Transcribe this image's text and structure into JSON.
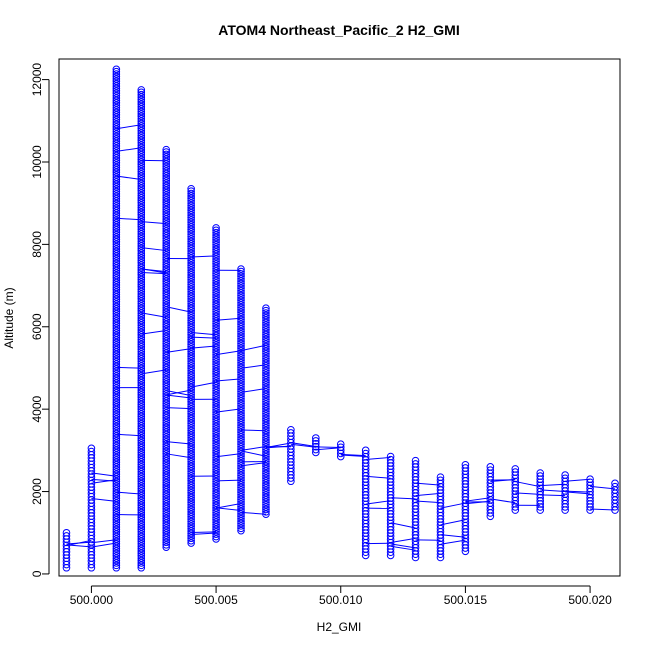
{
  "chart_data": {
    "type": "scatter",
    "title": "ATOM4 Northeast_Pacific_2 H2_GMI",
    "xlabel": "H2_GMI",
    "ylabel": "Altitude (m)",
    "xlim": [
      499.9987,
      500.0212
    ],
    "ylim": [
      -50,
      12500
    ],
    "x_ticks": [
      500.0,
      500.005,
      500.01,
      500.015,
      500.02
    ],
    "x_tick_labels": [
      "500.000",
      "500.005",
      "500.010",
      "500.015",
      "500.020"
    ],
    "y_ticks": [
      0,
      2000,
      4000,
      6000,
      8000,
      10000,
      12000
    ],
    "y_tick_labels": [
      "0",
      "2000",
      "4000",
      "6000",
      "8000",
      "10000",
      "12000"
    ],
    "marker": "open-circle",
    "connected": true,
    "series_color": "#0000ff",
    "columns": [
      {
        "x": 499.999,
        "y_min": 150,
        "y_max": 1000
      },
      {
        "x": 500.0,
        "y_min": 150,
        "y_max": 3050
      },
      {
        "x": 500.001,
        "y_min": 150,
        "y_max": 12250
      },
      {
        "x": 500.002,
        "y_min": 150,
        "y_max": 11750
      },
      {
        "x": 500.003,
        "y_min": 650,
        "y_max": 10300
      },
      {
        "x": 500.004,
        "y_min": 750,
        "y_max": 9350
      },
      {
        "x": 500.005,
        "y_min": 850,
        "y_max": 8400
      },
      {
        "x": 500.006,
        "y_min": 1050,
        "y_max": 7400
      },
      {
        "x": 500.007,
        "y_min": 1450,
        "y_max": 6450
      },
      {
        "x": 500.008,
        "y_min": 2250,
        "y_max": 3500
      },
      {
        "x": 500.009,
        "y_min": 2950,
        "y_max": 3300
      },
      {
        "x": 500.01,
        "y_min": 2850,
        "y_max": 3150
      },
      {
        "x": 500.011,
        "y_min": 450,
        "y_max": 3000
      },
      {
        "x": 500.012,
        "y_min": 450,
        "y_max": 2850
      },
      {
        "x": 500.013,
        "y_min": 400,
        "y_max": 2750
      },
      {
        "x": 500.014,
        "y_min": 400,
        "y_max": 2350
      },
      {
        "x": 500.015,
        "y_min": 550,
        "y_max": 2650
      },
      {
        "x": 500.016,
        "y_min": 1400,
        "y_max": 2600
      },
      {
        "x": 500.017,
        "y_min": 1550,
        "y_max": 2550
      },
      {
        "x": 500.018,
        "y_min": 1550,
        "y_max": 2450
      },
      {
        "x": 500.019,
        "y_min": 1550,
        "y_max": 2400
      },
      {
        "x": 500.02,
        "y_min": 1550,
        "y_max": 2300
      },
      {
        "x": 500.021,
        "y_min": 1550,
        "y_max": 2200
      }
    ]
  }
}
